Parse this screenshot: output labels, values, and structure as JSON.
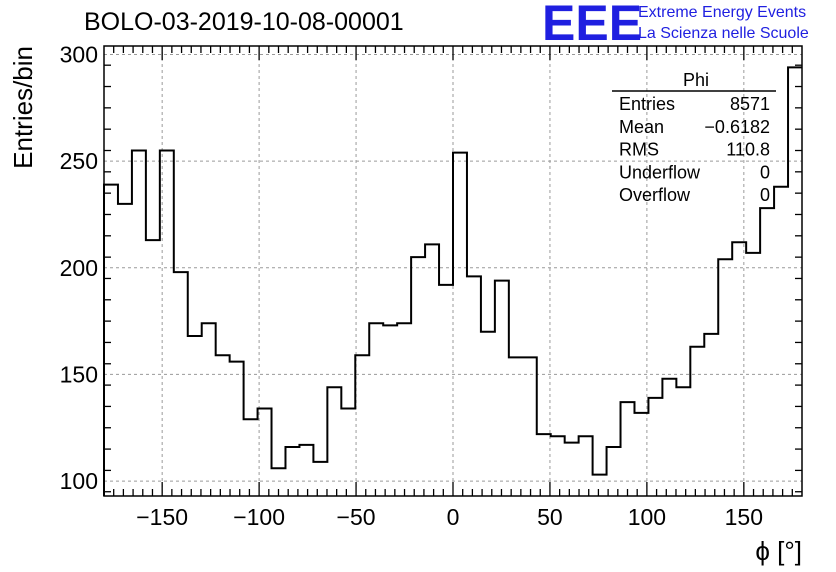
{
  "chart_data": {
    "type": "histogram",
    "title": "BOLO-03-2019-10-08-00001",
    "xlabel": "ϕ [°]",
    "ylabel": "Entries/bin",
    "xlim": [
      -180,
      180
    ],
    "ylim": [
      93,
      304
    ],
    "grid": true,
    "bin_width": 7.2,
    "xticks": [
      -150,
      -100,
      -50,
      0,
      50,
      100,
      150
    ],
    "xtick_labels": [
      "−150",
      "−100",
      "−50",
      "0",
      "50",
      "100",
      "150"
    ],
    "yticks": [
      100,
      150,
      200,
      250,
      300
    ],
    "ytick_labels": [
      "100",
      "150",
      "200",
      "250",
      "300"
    ],
    "values": [
      239,
      230,
      255,
      213,
      255,
      198,
      168,
      174,
      159,
      156,
      129,
      134,
      106,
      116,
      117,
      109,
      144,
      134,
      159,
      174,
      173,
      174,
      205,
      211,
      192,
      254,
      196,
      170,
      194,
      158,
      158,
      122,
      121,
      118,
      121,
      103,
      116,
      137,
      132,
      139,
      148,
      144,
      163,
      169,
      204,
      212,
      207,
      228,
      238,
      294
    ],
    "stats_box": {
      "name": "Phi",
      "rows": [
        {
          "label": "Entries",
          "value": "8571"
        },
        {
          "label": "Mean",
          "value": "−0.6182"
        },
        {
          "label": "RMS",
          "value": "110.8"
        },
        {
          "label": "Underflow",
          "value": "0"
        },
        {
          "label": "Overflow",
          "value": "0"
        }
      ]
    }
  },
  "logo": {
    "mark": "EEE",
    "line1": "Extreme Energy Events",
    "line2": "La Scienza nelle Scuole"
  },
  "colors": {
    "logo": "#1f1fe0",
    "line": "#000000",
    "grid": "#9a9a9a"
  }
}
